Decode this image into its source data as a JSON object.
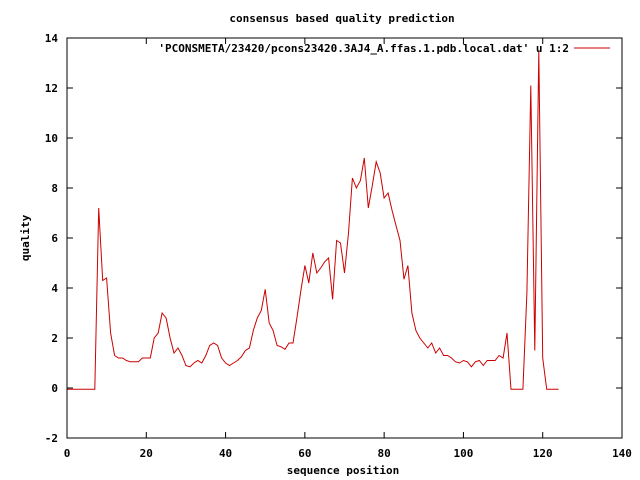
{
  "chart_data": {
    "type": "line",
    "title": "consensus based quality prediction",
    "xlabel": "sequence position",
    "ylabel": "quality",
    "xlim": [
      0,
      140
    ],
    "ylim": [
      -2,
      14
    ],
    "xticks": [
      "0",
      "20",
      "40",
      "60",
      "80",
      "100",
      "120",
      "140"
    ],
    "yticks": [
      "-2",
      "0",
      "2",
      "4",
      "6",
      "8",
      "10",
      "12",
      "14"
    ],
    "grid": false,
    "legend_position": "top-right",
    "series": [
      {
        "name": "'PCONSMETA/23420/pcons23420.3AJ4_A.ffas.1.pdb.local.dat' u 1:2",
        "color": "#cc0000",
        "x": [
          0,
          1,
          2,
          3,
          4,
          5,
          6,
          7,
          8,
          9,
          10,
          11,
          12,
          13,
          14,
          15,
          16,
          17,
          18,
          19,
          20,
          21,
          22,
          23,
          24,
          25,
          26,
          27,
          28,
          29,
          30,
          31,
          32,
          33,
          34,
          35,
          36,
          37,
          38,
          39,
          40,
          41,
          42,
          43,
          44,
          45,
          46,
          47,
          48,
          49,
          50,
          51,
          52,
          53,
          54,
          55,
          56,
          57,
          58,
          59,
          60,
          61,
          62,
          63,
          64,
          65,
          66,
          67,
          68,
          69,
          70,
          71,
          72,
          73,
          74,
          75,
          76,
          77,
          78,
          79,
          80,
          81,
          82,
          83,
          84,
          85,
          86,
          87,
          88,
          89,
          90,
          91,
          92,
          93,
          94,
          95,
          96,
          97,
          98,
          99,
          100,
          101,
          102,
          103,
          104,
          105,
          106,
          107,
          108,
          109,
          110,
          111,
          112,
          113,
          114,
          115,
          116,
          117,
          118,
          119,
          120,
          121,
          122,
          123,
          124
        ],
        "y": [
          -0.05,
          -0.05,
          -0.05,
          -0.05,
          -0.05,
          -0.05,
          -0.05,
          -0.05,
          7.2,
          4.3,
          4.4,
          2.2,
          1.3,
          1.2,
          1.2,
          1.1,
          1.05,
          1.05,
          1.05,
          1.2,
          1.2,
          1.2,
          2.0,
          2.2,
          3.0,
          2.8,
          2.0,
          1.4,
          1.6,
          1.3,
          0.9,
          0.85,
          1.0,
          1.1,
          1.0,
          1.3,
          1.7,
          1.8,
          1.7,
          1.2,
          1.0,
          0.9,
          1.0,
          1.1,
          1.25,
          1.5,
          1.6,
          2.3,
          2.8,
          3.1,
          3.95,
          2.6,
          2.3,
          1.7,
          1.65,
          1.55,
          1.8,
          1.8,
          2.8,
          3.9,
          4.9,
          4.2,
          5.4,
          4.6,
          4.8,
          5.05,
          5.2,
          3.55,
          5.9,
          5.8,
          4.6,
          6.2,
          8.4,
          8.0,
          8.3,
          9.2,
          7.2,
          8.1,
          9.05,
          8.6,
          7.6,
          7.8,
          7.1,
          6.5,
          5.9,
          4.35,
          4.9,
          3.0,
          2.3,
          2.0,
          1.8,
          1.6,
          1.8,
          1.4,
          1.6,
          1.3,
          1.3,
          1.2,
          1.05,
          1.0,
          1.1,
          1.05,
          0.85,
          1.05,
          1.1,
          0.9,
          1.1,
          1.1,
          1.1,
          1.3,
          1.2,
          2.2,
          -0.05,
          -0.05,
          -0.05,
          -0.05,
          3.8,
          12.1,
          1.5,
          13.5,
          1.2,
          -0.05,
          -0.05,
          -0.05,
          -0.05
        ]
      }
    ]
  }
}
